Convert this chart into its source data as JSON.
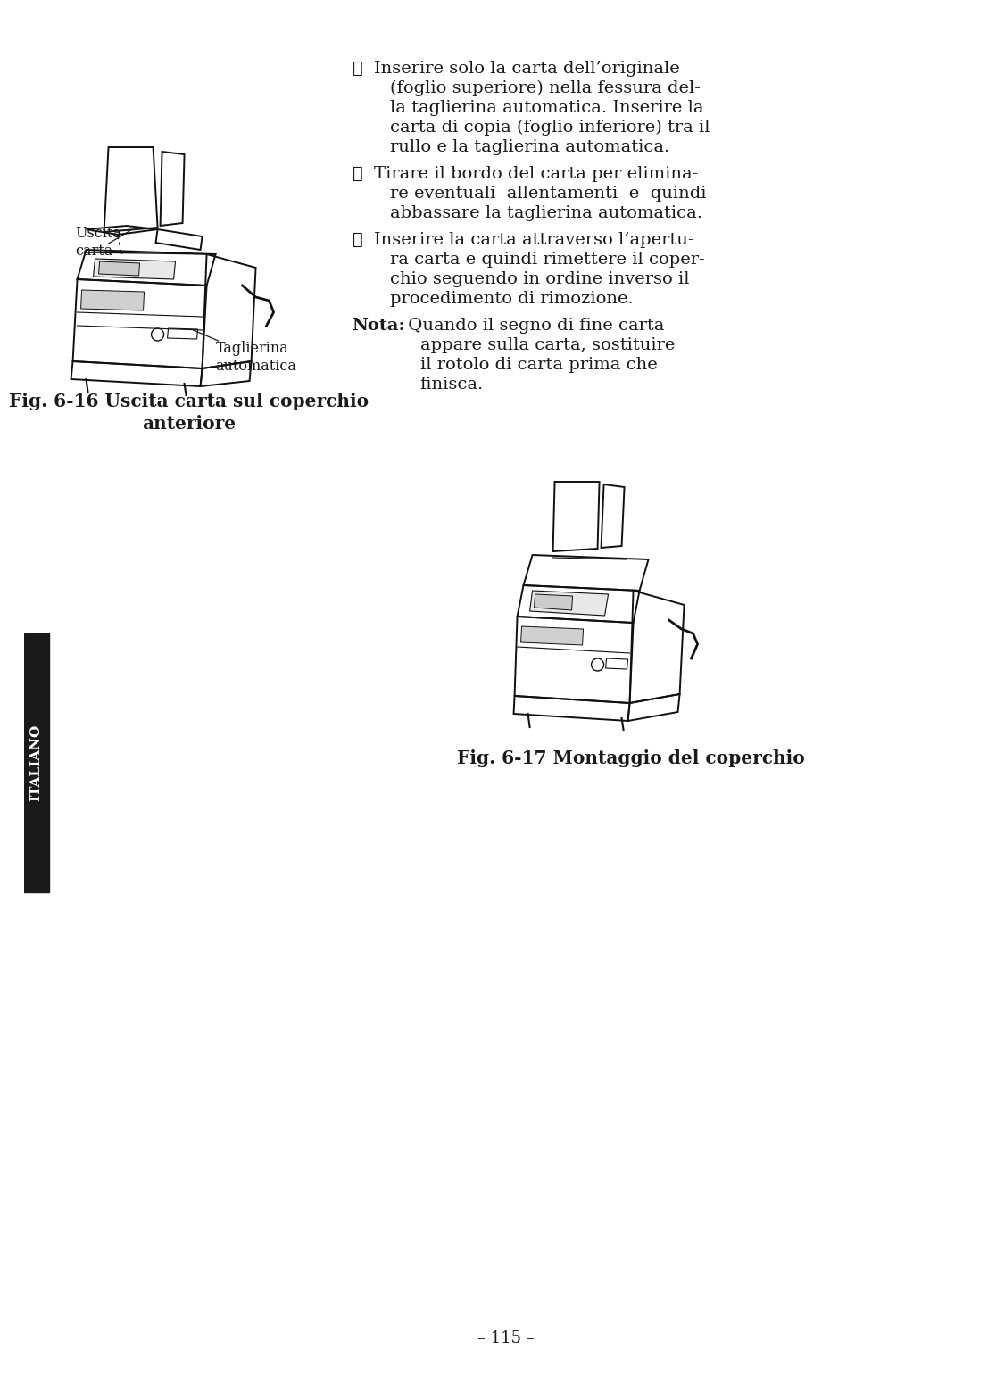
{
  "bg_color": "#ffffff",
  "text_color": "#1a1a1a",
  "sidebar_color": "#1a1a1a",
  "sidebar_text": "ITALIANO",
  "page_number": "– 115 –",
  "fig16_caption_line1": "Fig. 6-16 Uscita carta sul coperchio",
  "fig16_caption_line2": "anteriore",
  "fig17_caption": "Fig. 6-17 Montaggio del coperchio",
  "label_uscita_carta": "Uscita\ncarta",
  "label_taglierina": "Taglierina\nautomatica",
  "font_size_body": 14.0,
  "font_size_caption": 14.5,
  "font_size_label": 11.5,
  "font_size_sidebar": 11,
  "font_size_page": 13
}
